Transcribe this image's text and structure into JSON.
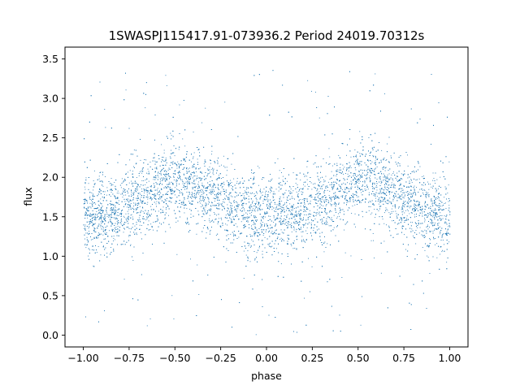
{
  "chart_data": {
    "type": "scatter",
    "title": "1SWASPJ115417.91-073936.2 Period 24019.70312s",
    "xlabel": "phase",
    "ylabel": "flux",
    "xlim": [
      -1.1,
      1.1
    ],
    "ylim": [
      -0.15,
      3.65
    ],
    "x_ticks": [
      -1.0,
      -0.75,
      -0.5,
      -0.25,
      0.0,
      0.25,
      0.5,
      0.75,
      1.0
    ],
    "x_tick_labels": [
      "−1.00",
      "−0.75",
      "−0.50",
      "−0.25",
      "0.00",
      "0.25",
      "0.50",
      "0.75",
      "1.00"
    ],
    "y_ticks": [
      0.0,
      0.5,
      1.0,
      1.5,
      2.0,
      2.5,
      3.0,
      3.5
    ],
    "y_tick_labels": [
      "0.0",
      "0.5",
      "1.0",
      "1.5",
      "2.0",
      "2.5",
      "3.0",
      "3.5"
    ],
    "grid": false,
    "legend": "none",
    "series": [
      {
        "marker_color": "#1f77b4",
        "phase_range": [
          -1.0,
          1.0
        ],
        "trend": {
          "phase": [
            -1.0,
            -0.9,
            -0.8,
            -0.7,
            -0.6,
            -0.5,
            -0.4,
            -0.3,
            -0.2,
            -0.1,
            0.0,
            0.1,
            0.2,
            0.3,
            0.4,
            0.5,
            0.6,
            0.7,
            0.8,
            0.9,
            1.0
          ],
          "flux": [
            1.5,
            1.52,
            1.6,
            1.72,
            1.86,
            1.95,
            1.9,
            1.78,
            1.64,
            1.55,
            1.5,
            1.52,
            1.6,
            1.72,
            1.86,
            1.95,
            1.9,
            1.78,
            1.64,
            1.55,
            1.5
          ]
        },
        "scatter_std": 0.25,
        "outlier_flux_range": [
          0.0,
          3.4
        ]
      }
    ]
  }
}
